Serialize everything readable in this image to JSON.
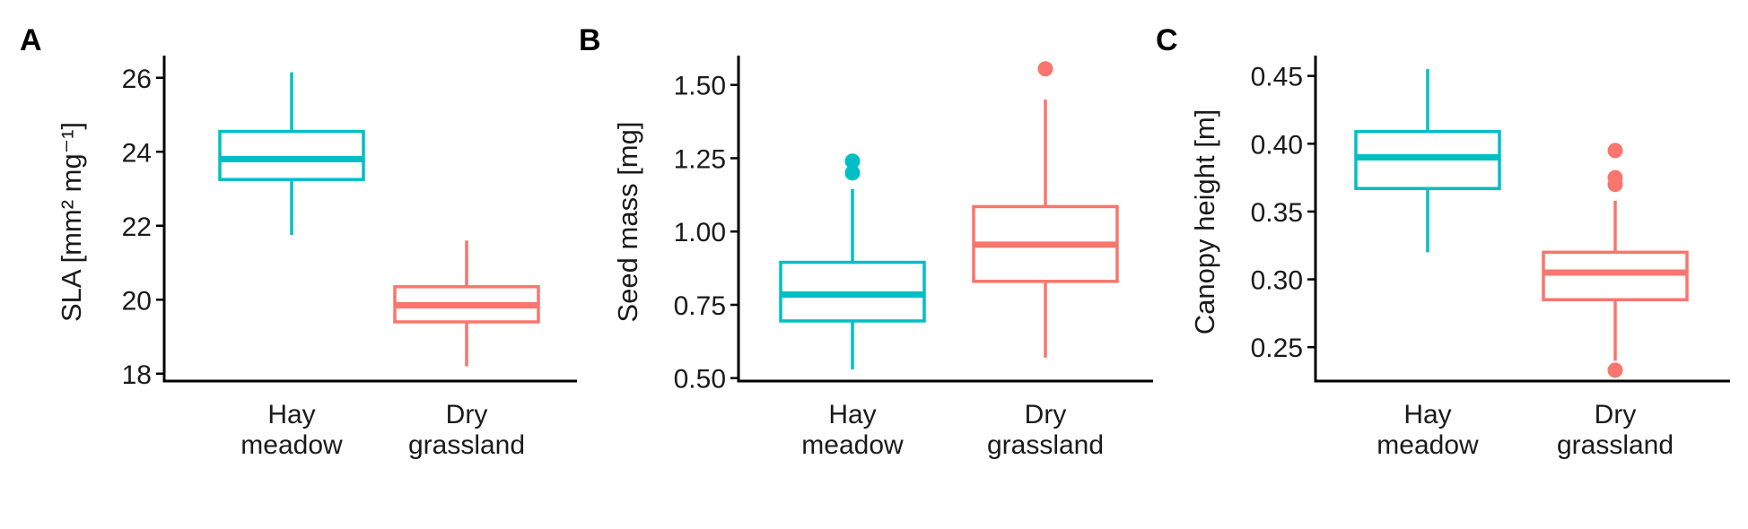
{
  "colors": {
    "hay_meadow": "#00BFC4",
    "dry_grassland": "#F8766D",
    "axis": "#000000"
  },
  "chart_data": [
    {
      "type": "box",
      "panel": "A",
      "ylabel": "SLA [mm² mg⁻¹]",
      "ylim": [
        17.8,
        26.6
      ],
      "yticks": [
        18,
        20,
        22,
        24,
        26
      ],
      "ytick_labels": [
        "18",
        "20",
        "22",
        "24",
        "26"
      ],
      "categories": [
        [
          "Hay",
          "meadow"
        ],
        [
          "Dry",
          "grassland"
        ]
      ],
      "boxes": [
        {
          "whisker_low": 21.75,
          "q1": 23.25,
          "median": 23.8,
          "q3": 24.55,
          "whisker_high": 26.15,
          "outliers": [],
          "color": "#00BFC4"
        },
        {
          "whisker_low": 18.2,
          "q1": 19.4,
          "median": 19.85,
          "q3": 20.35,
          "whisker_high": 21.6,
          "outliers": [],
          "color": "#F8766D"
        }
      ]
    },
    {
      "type": "box",
      "panel": "B",
      "ylabel": "Seed mass [mg]",
      "ylim": [
        0.49,
        1.6
      ],
      "yticks": [
        0.5,
        0.75,
        1.0,
        1.25,
        1.5
      ],
      "ytick_labels": [
        "0.50",
        "0.75",
        "1.00",
        "1.25",
        "1.50"
      ],
      "categories": [
        [
          "Hay",
          "meadow"
        ],
        [
          "Dry",
          "grassland"
        ]
      ],
      "boxes": [
        {
          "whisker_low": 0.53,
          "q1": 0.695,
          "median": 0.785,
          "q3": 0.895,
          "whisker_high": 1.145,
          "outliers": [
            1.2,
            1.24
          ],
          "color": "#00BFC4"
        },
        {
          "whisker_low": 0.57,
          "q1": 0.83,
          "median": 0.955,
          "q3": 1.085,
          "whisker_high": 1.45,
          "outliers": [
            1.555
          ],
          "color": "#F8766D"
        }
      ]
    },
    {
      "type": "box",
      "panel": "C",
      "ylabel": "Canopy height [m]",
      "ylim": [
        0.225,
        0.465
      ],
      "yticks": [
        0.25,
        0.3,
        0.35,
        0.4,
        0.45
      ],
      "ytick_labels": [
        "0.25",
        "0.30",
        "0.35",
        "0.40",
        "0.45"
      ],
      "categories": [
        [
          "Hay",
          "meadow"
        ],
        [
          "Dry",
          "grassland"
        ]
      ],
      "boxes": [
        {
          "whisker_low": 0.32,
          "q1": 0.367,
          "median": 0.39,
          "q3": 0.409,
          "whisker_high": 0.455,
          "outliers": [],
          "color": "#00BFC4"
        },
        {
          "whisker_low": 0.24,
          "q1": 0.285,
          "median": 0.305,
          "q3": 0.32,
          "whisker_high": 0.358,
          "outliers": [
            0.233,
            0.37,
            0.375,
            0.395
          ],
          "color": "#F8766D"
        }
      ]
    }
  ]
}
